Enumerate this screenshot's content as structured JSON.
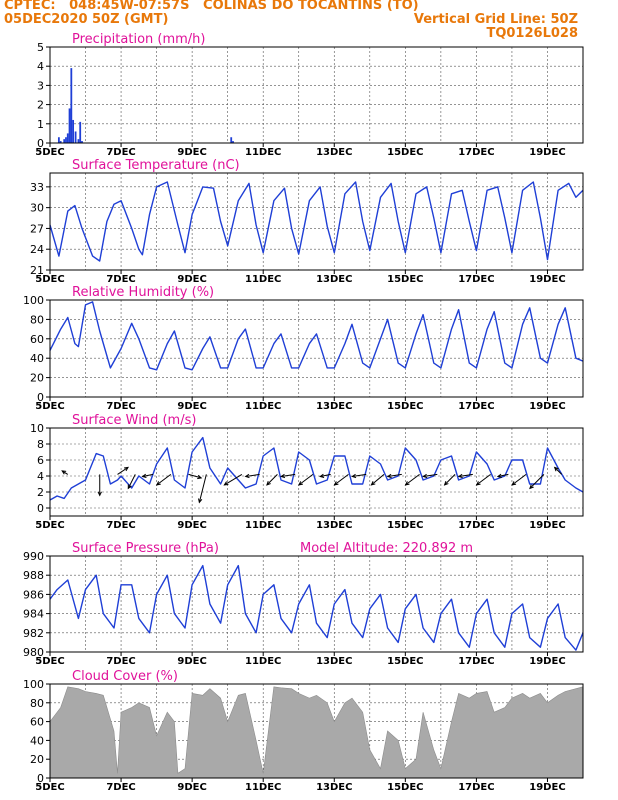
{
  "header": {
    "line1": "CPTEC:   048:45W-07:57S   COLINAS DO TOCANTINS (TO)",
    "line2": "05DEC2020 50Z (GMT)",
    "grid_note": "Vertical Grid Line: 50Z",
    "code": "TQ0126L028"
  },
  "colors": {
    "header": "#e8780a",
    "title": "#e0129a",
    "series": "#1f3fd6",
    "cloud": "#a9a9a9",
    "wind_arrow": "#000000"
  },
  "x_axis": {
    "tick_labels": [
      "5DEC",
      "7DEC",
      "9DEC",
      "11DEC",
      "13DEC",
      "15DEC",
      "17DEC",
      "19DEC"
    ],
    "range_days": [
      5,
      20
    ],
    "grid": "dashed vertical every day"
  },
  "chart_data": [
    {
      "type": "bar",
      "title": "Precipitation (mm/h)",
      "ylim": [
        0,
        5
      ],
      "y_ticks": [
        0,
        1,
        2,
        3,
        4,
        5
      ],
      "x": [
        5.25,
        5.3,
        5.4,
        5.45,
        5.5,
        5.55,
        5.6,
        5.65,
        5.72,
        5.8,
        5.85,
        5.9,
        10.1,
        10.15
      ],
      "values": [
        0.3,
        0.1,
        0.2,
        0.3,
        0.5,
        1.8,
        3.9,
        1.2,
        0.6,
        0.2,
        1.1,
        0.1,
        0.3,
        0.1
      ]
    },
    {
      "type": "line",
      "title": "Surface Temperature (nC)",
      "ylim": [
        21,
        35
      ],
      "y_ticks": [
        21,
        24,
        27,
        30,
        33
      ],
      "x": [
        5.0,
        5.25,
        5.5,
        5.7,
        5.9,
        6.2,
        6.4,
        6.6,
        6.8,
        7.0,
        7.3,
        7.5,
        7.6,
        7.8,
        8.0,
        8.3,
        8.6,
        8.8,
        9.0,
        9.3,
        9.6,
        9.8,
        10.0,
        10.3,
        10.6,
        10.8,
        11.0,
        11.3,
        11.6,
        11.8,
        12.0,
        12.3,
        12.6,
        12.8,
        13.0,
        13.3,
        13.6,
        13.8,
        14.0,
        14.3,
        14.6,
        14.8,
        15.0,
        15.3,
        15.6,
        15.8,
        16.0,
        16.3,
        16.6,
        16.8,
        17.0,
        17.3,
        17.6,
        17.8,
        18.0,
        18.3,
        18.6,
        18.8,
        19.0,
        19.3,
        19.6,
        19.8,
        20.0
      ],
      "values": [
        27.5,
        23.0,
        29.5,
        30.3,
        27.0,
        23.0,
        22.3,
        28.0,
        30.5,
        31.0,
        27.0,
        24.0,
        23.2,
        29.0,
        33.0,
        33.7,
        27.5,
        23.5,
        29.0,
        33.0,
        32.8,
        28.0,
        24.5,
        31.0,
        33.5,
        27.5,
        23.5,
        31.0,
        32.8,
        27.0,
        23.3,
        31.0,
        33.0,
        27.3,
        23.5,
        32.0,
        33.7,
        28.0,
        23.8,
        31.5,
        33.5,
        28.0,
        23.5,
        32.0,
        33.0,
        28.5,
        23.5,
        32.0,
        32.5,
        28.0,
        23.8,
        32.5,
        33.0,
        28.5,
        23.5,
        32.5,
        33.7,
        28.5,
        22.5,
        32.5,
        33.5,
        31.5,
        32.5
      ]
    },
    {
      "type": "line",
      "title": "Relative Humidity (%)",
      "ylim": [
        0,
        100
      ],
      "y_ticks": [
        0,
        20,
        40,
        60,
        80,
        100
      ],
      "x": [
        5.0,
        5.3,
        5.5,
        5.7,
        5.8,
        6.0,
        6.2,
        6.4,
        6.7,
        7.0,
        7.3,
        7.5,
        7.8,
        8.0,
        8.3,
        8.5,
        8.8,
        9.0,
        9.3,
        9.5,
        9.8,
        10.0,
        10.3,
        10.5,
        10.8,
        11.0,
        11.3,
        11.5,
        11.8,
        12.0,
        12.3,
        12.5,
        12.8,
        13.0,
        13.3,
        13.5,
        13.8,
        14.0,
        14.3,
        14.5,
        14.8,
        15.0,
        15.3,
        15.5,
        15.8,
        16.0,
        16.3,
        16.5,
        16.8,
        17.0,
        17.3,
        17.5,
        17.8,
        18.0,
        18.3,
        18.5,
        18.8,
        19.0,
        19.3,
        19.5,
        19.8,
        20.0
      ],
      "values": [
        48,
        70,
        82,
        55,
        52,
        95,
        98,
        68,
        30,
        50,
        76,
        60,
        30,
        28,
        55,
        68,
        30,
        28,
        50,
        62,
        30,
        30,
        60,
        70,
        30,
        30,
        55,
        65,
        30,
        30,
        55,
        65,
        30,
        30,
        55,
        75,
        35,
        30,
        60,
        80,
        35,
        30,
        65,
        85,
        35,
        30,
        70,
        90,
        35,
        30,
        70,
        88,
        35,
        30,
        75,
        92,
        40,
        35,
        75,
        92,
        40,
        37
      ]
    },
    {
      "type": "line",
      "title": "Surface Wind (m/s)",
      "ylim": [
        -1,
        10
      ],
      "y_ticks": [
        0,
        2,
        4,
        6,
        8,
        10
      ],
      "x": [
        5.0,
        5.2,
        5.4,
        5.6,
        5.8,
        6.0,
        6.3,
        6.5,
        6.7,
        6.9,
        7.0,
        7.3,
        7.5,
        7.8,
        8.0,
        8.3,
        8.5,
        8.8,
        9.0,
        9.3,
        9.5,
        9.8,
        10.0,
        10.3,
        10.5,
        10.8,
        11.0,
        11.3,
        11.5,
        11.8,
        12.0,
        12.3,
        12.5,
        12.8,
        13.0,
        13.3,
        13.5,
        13.8,
        14.0,
        14.3,
        14.5,
        14.8,
        15.0,
        15.3,
        15.5,
        15.8,
        16.0,
        16.3,
        16.5,
        16.8,
        17.0,
        17.3,
        17.5,
        17.8,
        18.0,
        18.3,
        18.5,
        18.8,
        19.0,
        19.3,
        19.5,
        19.8,
        20.0
      ],
      "values": [
        1.0,
        1.5,
        1.2,
        2.5,
        3.0,
        3.5,
        6.8,
        6.5,
        3.0,
        3.5,
        4.0,
        2.5,
        4.0,
        3.0,
        5.5,
        7.5,
        3.5,
        2.5,
        7.0,
        8.8,
        5.0,
        3.0,
        5.0,
        3.5,
        2.5,
        3.0,
        6.5,
        7.5,
        3.5,
        3.0,
        7.0,
        6.0,
        3.0,
        3.5,
        6.5,
        6.5,
        3.0,
        3.0,
        6.5,
        5.5,
        3.5,
        4.0,
        7.5,
        6.0,
        3.5,
        4.0,
        6.0,
        6.5,
        3.5,
        4.0,
        7.0,
        5.5,
        3.5,
        4.0,
        6.0,
        6.0,
        3.0,
        3.0,
        7.5,
        5.0,
        3.5,
        2.5,
        2.0
      ],
      "wind_arrows": {
        "x": [
          5.5,
          6.4,
          6.9,
          7.4,
          7.9,
          8.4,
          8.9,
          9.4,
          10.4,
          10.9,
          11.4,
          11.9,
          12.4,
          12.9,
          13.4,
          13.9,
          14.4,
          14.9,
          15.4,
          15.9,
          16.4,
          16.9,
          17.4,
          17.9,
          18.4,
          18.9,
          19.4
        ],
        "u": [
          -0.8,
          0.0,
          1.5,
          -1.0,
          -1.5,
          -2.0,
          1.8,
          -1.0,
          -2.5,
          -2.0,
          -1.5,
          -2.0,
          -2.0,
          -1.5,
          -2.0,
          -2.0,
          -1.8,
          -2.0,
          -2.0,
          -2.0,
          -1.5,
          -2.0,
          -2.0,
          -1.5,
          -2.0,
          -2.0,
          -1.0
        ],
        "v": [
          0.5,
          -3.0,
          1.0,
          -2.0,
          -0.3,
          -1.5,
          -0.5,
          -4.0,
          -1.5,
          -0.3,
          -1.5,
          -0.3,
          -1.5,
          -0.3,
          -1.5,
          -0.3,
          -1.5,
          -0.3,
          -1.5,
          -0.3,
          -1.5,
          -0.3,
          -1.5,
          -0.3,
          -1.5,
          -2.0,
          1.0
        ]
      }
    },
    {
      "type": "line",
      "title": "Surface Pressure (hPa)",
      "annotation": "Model Altitude: 220.892  m",
      "ylim": [
        980,
        990
      ],
      "y_ticks": [
        980,
        982,
        984,
        986,
        988,
        990
      ],
      "x": [
        5.0,
        5.2,
        5.5,
        5.8,
        6.0,
        6.3,
        6.5,
        6.8,
        7.0,
        7.3,
        7.5,
        7.8,
        8.0,
        8.3,
        8.5,
        8.8,
        9.0,
        9.3,
        9.5,
        9.8,
        10.0,
        10.3,
        10.5,
        10.8,
        11.0,
        11.3,
        11.5,
        11.8,
        12.0,
        12.3,
        12.5,
        12.8,
        13.0,
        13.3,
        13.5,
        13.8,
        14.0,
        14.3,
        14.5,
        14.8,
        15.0,
        15.3,
        15.5,
        15.8,
        16.0,
        16.3,
        16.5,
        16.8,
        17.0,
        17.3,
        17.5,
        17.8,
        18.0,
        18.3,
        18.5,
        18.8,
        19.0,
        19.3,
        19.5,
        19.8,
        20.0
      ],
      "values": [
        985.5,
        986.5,
        987.5,
        983.5,
        986.5,
        988.0,
        984.0,
        982.5,
        987.0,
        987.0,
        983.5,
        982.0,
        986.0,
        988.0,
        984.0,
        982.5,
        987.0,
        989.0,
        985.0,
        983.0,
        987.0,
        989.0,
        984.0,
        982.0,
        986.0,
        987.0,
        983.5,
        982.0,
        985.0,
        987.0,
        983.0,
        981.5,
        985.0,
        986.5,
        983.0,
        981.5,
        984.5,
        986.0,
        982.5,
        981.0,
        984.5,
        986.0,
        982.5,
        981.0,
        984.0,
        985.5,
        982.0,
        980.5,
        984.0,
        985.5,
        982.0,
        980.5,
        984.0,
        985.0,
        981.5,
        980.5,
        983.5,
        985.0,
        981.5,
        980.2,
        982.0
      ]
    },
    {
      "type": "area",
      "title": "Cloud Cover (%)",
      "ylim": [
        0,
        100
      ],
      "y_ticks": [
        0,
        20,
        40,
        60,
        80,
        100
      ],
      "x": [
        5.0,
        5.3,
        5.5,
        5.8,
        6.0,
        6.3,
        6.5,
        6.8,
        6.9,
        7.0,
        7.3,
        7.5,
        7.8,
        8.0,
        8.3,
        8.5,
        8.6,
        8.8,
        9.0,
        9.3,
        9.5,
        9.8,
        10.0,
        10.3,
        10.5,
        10.8,
        11.0,
        11.3,
        11.5,
        11.8,
        12.0,
        12.3,
        12.5,
        12.8,
        13.0,
        13.3,
        13.5,
        13.8,
        14.0,
        14.3,
        14.5,
        14.8,
        15.0,
        15.3,
        15.5,
        15.8,
        16.0,
        16.3,
        16.5,
        16.8,
        17.0,
        17.3,
        17.5,
        17.8,
        18.0,
        18.3,
        18.5,
        18.8,
        19.0,
        19.3,
        19.5,
        19.8,
        20.0
      ],
      "values": [
        60,
        75,
        97,
        95,
        92,
        90,
        88,
        50,
        5,
        70,
        75,
        80,
        75,
        45,
        70,
        60,
        5,
        10,
        90,
        88,
        95,
        85,
        60,
        88,
        90,
        40,
        5,
        97,
        96,
        95,
        90,
        85,
        88,
        80,
        60,
        80,
        85,
        70,
        30,
        10,
        50,
        40,
        10,
        20,
        70,
        30,
        10,
        60,
        90,
        85,
        90,
        92,
        70,
        75,
        85,
        90,
        85,
        90,
        80,
        88,
        92,
        95,
        97
      ]
    }
  ]
}
